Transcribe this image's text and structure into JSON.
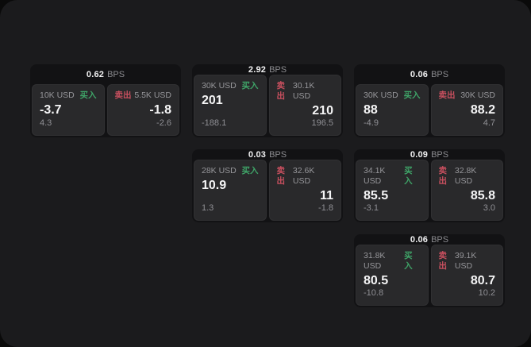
{
  "labels": {
    "bps_unit": "BPS",
    "buy": "买入",
    "sell": "卖出"
  },
  "colors": {
    "page_background": "#0a0a0a",
    "panel_background": "#1b1b1d",
    "card_background": "#121214",
    "tile_background": "#29292b",
    "buy_green": "#3fa468",
    "sell_red": "#c9505f",
    "primary_text": "#f5f5f6",
    "muted_text": "#8f8f94"
  },
  "cards": [
    {
      "grid": {
        "row": 0,
        "col": 0
      },
      "bps": "0.62",
      "buy": {
        "amount": "10K USD",
        "price": "-3.7",
        "delta": "4.3"
      },
      "sell": {
        "amount": "5.5K USD",
        "price": "-1.8",
        "delta": "-2.6"
      }
    },
    {
      "grid": {
        "row": 0,
        "col": 1
      },
      "bps": "2.92",
      "buy": {
        "amount": "30K USD",
        "price": "201",
        "delta": "-188.1"
      },
      "sell": {
        "amount": "30.1K USD",
        "price": "210",
        "delta": "196.5"
      }
    },
    {
      "grid": {
        "row": 0,
        "col": 2
      },
      "bps": "0.06",
      "buy": {
        "amount": "30K USD",
        "price": "88",
        "delta": "-4.9"
      },
      "sell": {
        "amount": "30K USD",
        "price": "88.2",
        "delta": "4.7"
      }
    },
    {
      "grid": {
        "row": 1,
        "col": 1
      },
      "bps": "0.03",
      "buy": {
        "amount": "28K USD",
        "price": "10.9",
        "delta": "1.3"
      },
      "sell": {
        "amount": "32.6K USD",
        "price": "11",
        "delta": "-1.8"
      }
    },
    {
      "grid": {
        "row": 1,
        "col": 2
      },
      "bps": "0.09",
      "buy": {
        "amount": "34.1K USD",
        "price": "85.5",
        "delta": "-3.1"
      },
      "sell": {
        "amount": "32.8K USD",
        "price": "85.8",
        "delta": "3.0"
      }
    },
    {
      "grid": {
        "row": 2,
        "col": 2
      },
      "bps": "0.06",
      "buy": {
        "amount": "31.8K USD",
        "price": "80.5",
        "delta": "-10.8"
      },
      "sell": {
        "amount": "39.1K USD",
        "price": "80.7",
        "delta": "10.2"
      }
    }
  ]
}
